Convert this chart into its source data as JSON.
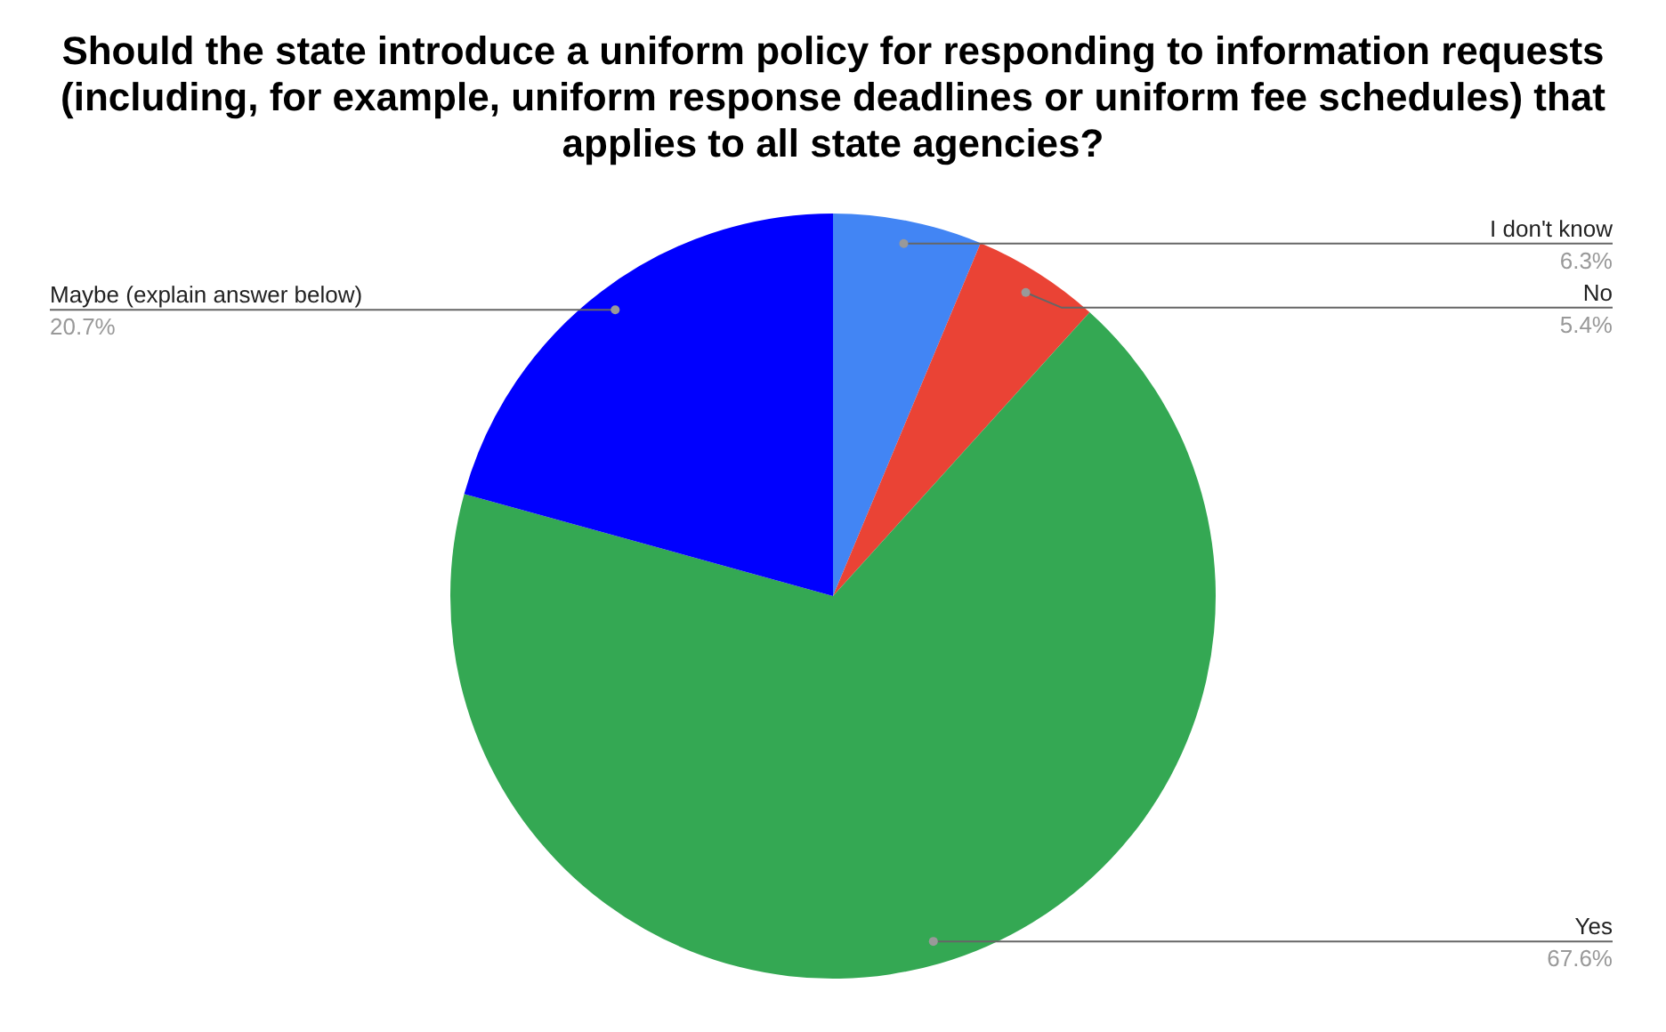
{
  "chart_data": {
    "type": "pie",
    "title": "Should the state introduce a uniform policy for responding to information requests (including, for example, uniform response deadlines or uniform fee schedules) that applies to all state agencies?",
    "categories": [
      "I don't know",
      "No",
      "Yes",
      "Maybe (explain answer below)"
    ],
    "values": [
      6.3,
      5.4,
      67.6,
      20.7
    ],
    "colors": [
      "#4285f4",
      "#ea4335",
      "#34a853",
      "#0000ff"
    ],
    "value_labels": [
      "6.3%",
      "5.4%",
      "67.6%",
      "20.7%"
    ],
    "legend": false
  }
}
